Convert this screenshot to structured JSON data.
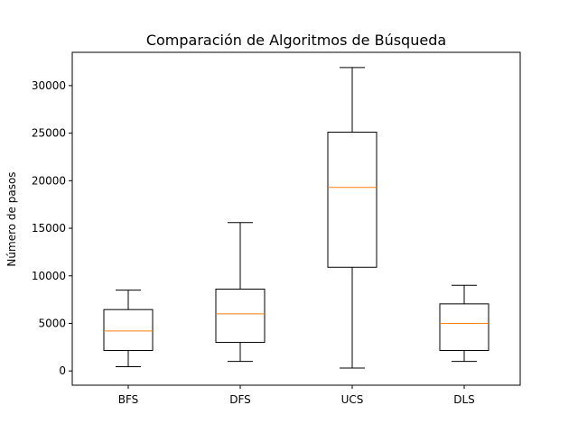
{
  "chart_data": {
    "type": "box",
    "title": "Comparación de Algoritmos de Búsqueda",
    "xlabel": "",
    "ylabel": "Número de pasos",
    "ylim": [
      -1500,
      33500
    ],
    "yticks": [
      0,
      5000,
      10000,
      15000,
      20000,
      25000,
      30000
    ],
    "ytick_labels": [
      "0",
      "5000",
      "10000",
      "15000",
      "20000",
      "25000",
      "30000"
    ],
    "categories": [
      "BFS",
      "DFS",
      "UCS",
      "DLS"
    ],
    "boxes": [
      {
        "label": "BFS",
        "whisker_low": 450,
        "q1": 2150,
        "median": 4200,
        "q3": 6450,
        "whisker_high": 8500
      },
      {
        "label": "DFS",
        "whisker_low": 1000,
        "q1": 3000,
        "median": 6000,
        "q3": 8600,
        "whisker_high": 15600
      },
      {
        "label": "UCS",
        "whisker_low": 300,
        "q1": 10900,
        "median": 19300,
        "q3": 25100,
        "whisker_high": 31900
      },
      {
        "label": "DLS",
        "whisker_low": 1000,
        "q1": 2150,
        "median": 5000,
        "q3": 7050,
        "whisker_high": 9000
      }
    ],
    "grid": false,
    "colors": {
      "box": "#000000",
      "median": "#ff7f0e"
    }
  }
}
